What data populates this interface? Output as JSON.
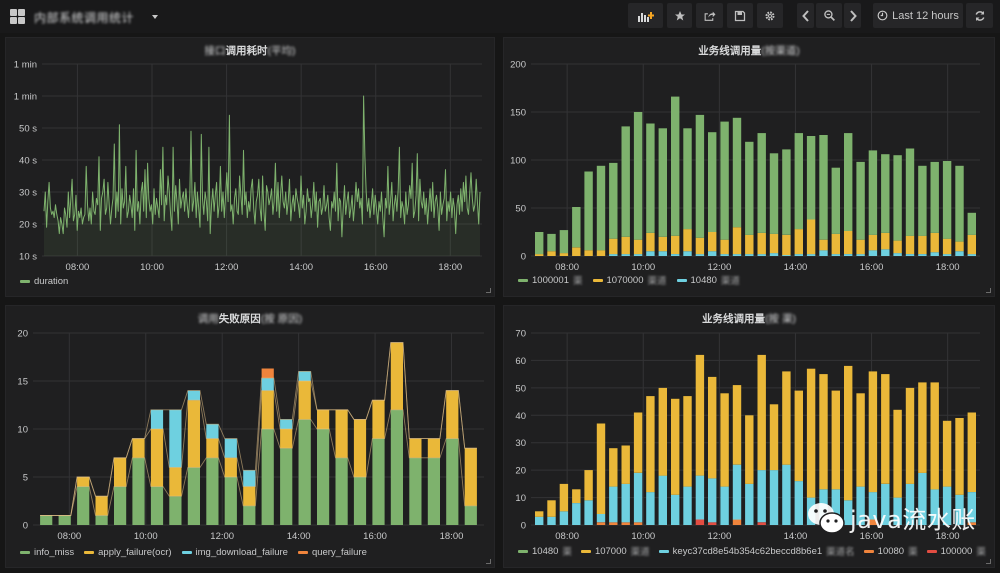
{
  "topbar": {
    "dashboard_title": "内部系统调用统计",
    "buttons": {
      "add_panel": "add-panel-icon",
      "star": "star-icon",
      "share": "share-icon",
      "save": "save-icon",
      "settings": "gear-icon",
      "back": "chevron-left-icon",
      "zoom_out": "zoom-out-icon",
      "forward": "chevron-right-icon",
      "refresh": "refresh-icon"
    },
    "time_range": "Last 12 hours"
  },
  "watermark": {
    "text": "java流水账"
  },
  "colors": {
    "green": "#7eb26d",
    "yellow": "#eab839",
    "blue": "#6ed0e0",
    "orange": "#ef843c",
    "red": "#e24d42",
    "grid": "#333335"
  },
  "panels": [
    {
      "title_prefix": "接口",
      "title_main": "调用耗时",
      "title_blurred": "(平均)",
      "legend": [
        {
          "label": "duration",
          "color": "#7eb26d"
        }
      ]
    },
    {
      "title_main": "业务线调用量",
      "title_blurred": "(按渠道)",
      "legend": [
        {
          "label": "1000001",
          "blurred": "渠",
          "color": "#7eb26d"
        },
        {
          "label": "1070000",
          "blurred": "渠道",
          "color": "#eab839"
        },
        {
          "label": "10480",
          "blurred": "渠道",
          "color": "#6ed0e0"
        }
      ]
    },
    {
      "title_prefix": "调用",
      "title_main": "失败原因",
      "title_blurred": "(按 原因)",
      "legend": [
        {
          "label": "info_miss",
          "color": "#7eb26d"
        },
        {
          "label": "apply_failure(ocr)",
          "color": "#eab839"
        },
        {
          "label": "img_download_failure",
          "color": "#6ed0e0"
        },
        {
          "label": "query_failure",
          "color": "#ef843c"
        }
      ]
    },
    {
      "title_main": "业务线调用量",
      "title_blurred": "(按 渠)",
      "legend": [
        {
          "label": "10480",
          "blurred": "渠",
          "color": "#7eb26d"
        },
        {
          "label": "107000",
          "blurred": "渠道",
          "color": "#eab839"
        },
        {
          "label": "keyc37cd8e54b354c62beccd8b6e1",
          "blurred": "渠道名",
          "color": "#6ed0e0"
        },
        {
          "label": "10080",
          "blurred": "渠",
          "color": "#ef843c"
        },
        {
          "label": "100000",
          "blurred": "渠",
          "color": "#e24d42"
        }
      ]
    }
  ],
  "chart_data": [
    {
      "type": "line",
      "title": "调用耗时",
      "x_ticks": [
        "08:00",
        "10:00",
        "12:00",
        "14:00",
        "16:00",
        "18:00"
      ],
      "y_ticks": [
        "1 min",
        "1 min",
        "50 s",
        "40 s",
        "30 s",
        "20 s",
        "10 s"
      ],
      "y_tick_values": [
        70,
        60,
        50,
        40,
        30,
        20,
        10
      ],
      "ylim": [
        10,
        70
      ],
      "x_range_hours": [
        7.05,
        18.85
      ],
      "series": [
        {
          "name": "duration",
          "fill": true,
          "values": [
            24,
            30,
            19,
            27,
            33,
            25,
            23,
            24,
            22,
            26,
            23,
            21,
            17,
            22,
            20,
            17,
            25,
            23,
            19,
            30,
            22,
            28,
            34,
            21,
            23,
            29,
            18,
            24,
            22,
            25,
            20,
            22,
            23,
            38,
            26,
            21,
            25,
            20,
            30,
            24,
            23,
            28,
            26,
            41,
            18,
            28,
            30,
            34,
            23,
            25,
            33,
            26,
            20,
            25,
            28,
            45,
            22,
            30,
            24,
            51,
            20,
            31,
            25,
            27,
            38,
            22,
            24,
            29,
            26,
            22,
            31,
            18,
            43,
            24,
            27,
            20,
            30,
            33,
            24,
            37,
            22,
            39,
            28,
            24,
            26,
            20,
            31,
            23,
            28,
            25,
            22,
            37,
            26,
            44,
            21,
            29,
            26,
            35,
            30,
            23,
            18,
            44,
            24,
            32,
            27,
            20,
            34,
            25,
            28,
            30,
            24,
            31,
            26,
            22,
            29,
            49,
            24,
            27,
            33,
            22,
            30,
            25,
            19,
            48,
            28,
            23,
            30,
            27,
            21,
            44,
            17,
            26,
            31,
            24,
            29,
            33,
            22,
            26,
            38,
            24,
            30,
            22,
            29,
            36,
            27,
            54,
            24,
            26,
            20,
            28,
            31,
            24,
            23,
            35,
            29,
            23,
            43,
            26,
            30,
            22,
            27,
            24,
            31,
            34,
            25,
            20,
            27,
            29,
            34,
            25,
            21,
            35,
            24,
            18,
            32,
            30,
            26,
            28,
            31,
            23,
            27,
            39,
            24,
            33,
            22,
            29,
            35,
            27,
            25,
            30,
            23,
            27,
            34,
            21,
            26,
            29,
            24,
            31,
            28,
            26,
            22,
            35,
            25,
            29,
            20,
            24,
            31,
            27,
            28,
            22,
            26,
            33,
            24,
            30,
            19,
            27,
            28,
            23,
            25,
            32,
            24,
            26,
            29,
            22,
            18,
            27,
            25,
            30,
            24,
            39,
            21,
            28,
            27,
            16,
            25,
            32,
            23,
            27,
            30,
            22,
            25,
            29,
            21,
            26,
            33,
            27,
            31,
            25,
            28,
            20,
            60,
            41,
            30,
            24,
            28,
            22,
            26,
            31,
            23,
            29,
            25,
            20,
            27,
            24,
            30,
            22,
            16,
            28,
            25,
            38,
            23,
            27,
            33,
            21,
            26,
            29,
            24,
            31,
            44,
            22,
            27,
            25,
            20,
            30,
            23,
            26,
            32,
            28,
            39,
            22,
            24,
            29,
            42,
            21,
            34,
            27,
            25,
            30,
            23,
            28,
            20,
            26,
            31,
            24,
            33,
            22,
            27,
            29,
            25,
            18,
            30,
            23,
            26,
            28,
            37,
            21,
            27,
            24,
            30,
            22,
            28,
            25,
            17,
            26,
            29,
            23,
            31,
            24,
            33,
            27,
            35,
            25,
            23,
            30,
            36,
            28,
            24,
            26,
            34,
            27,
            20,
            30
          ]
        }
      ]
    },
    {
      "type": "bar",
      "stacked": true,
      "title": "业务线调用量",
      "x_ticks": [
        "08:00",
        "10:00",
        "12:00",
        "14:00",
        "16:00",
        "18:00"
      ],
      "y_ticks": [
        0,
        50,
        100,
        150,
        200
      ],
      "ylim": [
        0,
        200
      ],
      "x_range_hours": [
        7.05,
        18.85
      ],
      "series": [
        {
          "name": "10480",
          "color": "#6ed0e0",
          "values": [
            0,
            0,
            0,
            0,
            0,
            0,
            2,
            2,
            2,
            5,
            5,
            2,
            5,
            2,
            5,
            2,
            2,
            2,
            2,
            3,
            1,
            2,
            2,
            6,
            2,
            2,
            2,
            6,
            7,
            3,
            2,
            2,
            4,
            2,
            5,
            2
          ]
        },
        {
          "name": "1070000",
          "color": "#eab839",
          "values": [
            2,
            5,
            3,
            9,
            6,
            6,
            16,
            18,
            15,
            19,
            15,
            19,
            23,
            17,
            20,
            15,
            28,
            20,
            22,
            20,
            21,
            26,
            36,
            11,
            21,
            24,
            15,
            16,
            17,
            13,
            19,
            19,
            20,
            16,
            10,
            20
          ]
        },
        {
          "name": "1000001",
          "color": "#7eb26d",
          "values": [
            23,
            18,
            24,
            42,
            82,
            88,
            79,
            115,
            133,
            114,
            113,
            145,
            105,
            128,
            104,
            123,
            114,
            97,
            104,
            84,
            89,
            100,
            87,
            109,
            69,
            102,
            81,
            88,
            82,
            89,
            91,
            73,
            74,
            81,
            79,
            23
          ]
        }
      ]
    },
    {
      "type": "bar",
      "stacked": true,
      "title": "失败原因",
      "x_ticks": [
        "08:00",
        "10:00",
        "12:00",
        "14:00",
        "16:00",
        "18:00"
      ],
      "y_ticks": [
        0,
        5,
        10,
        15,
        20
      ],
      "ylim": [
        0,
        20
      ],
      "x_range_hours": [
        7.05,
        18.85
      ],
      "series": [
        {
          "name": "info_miss",
          "color": "#7eb26d",
          "values": [
            1,
            1,
            4,
            1,
            4,
            7,
            4,
            3,
            6,
            7,
            5,
            2,
            10,
            8,
            11,
            10,
            7,
            5,
            9,
            12,
            7,
            7,
            9,
            2
          ]
        },
        {
          "name": "apply_failure(ocr)",
          "color": "#eab839",
          "values": [
            0,
            0,
            1,
            2,
            3,
            2,
            6,
            3,
            7,
            2,
            2,
            2,
            4,
            2,
            4,
            2,
            5,
            6,
            4,
            7,
            2,
            2,
            5,
            6
          ]
        },
        {
          "name": "img_download_failure",
          "color": "#6ed0e0",
          "values": [
            0,
            0,
            0,
            0,
            0,
            0,
            2,
            6,
            1,
            1.5,
            2,
            1.7,
            1.3,
            1,
            1,
            0,
            0,
            0,
            0,
            0,
            0,
            0,
            0,
            0
          ]
        },
        {
          "name": "query_failure",
          "color": "#ef843c",
          "values": [
            0,
            0,
            0,
            0,
            0,
            0,
            0,
            0,
            0,
            0,
            0,
            0,
            1,
            0,
            0,
            0,
            0,
            0,
            0,
            0,
            0,
            0,
            0,
            0
          ]
        }
      ]
    },
    {
      "type": "bar",
      "stacked": true,
      "title": "业务线调用量",
      "x_ticks": [
        "08:00",
        "10:00",
        "12:00",
        "14:00",
        "16:00",
        "18:00"
      ],
      "y_ticks": [
        0,
        10,
        20,
        30,
        40,
        50,
        60,
        70
      ],
      "ylim": [
        0,
        70
      ],
      "x_range_hours": [
        7.05,
        18.85
      ],
      "series": [
        {
          "name": "100000",
          "color": "#e24d42",
          "values": [
            0,
            0,
            0,
            0,
            0,
            0,
            0,
            0,
            0,
            0,
            0,
            0,
            0,
            2,
            1,
            0,
            0,
            0,
            1,
            0,
            0,
            0,
            0,
            0,
            0,
            0,
            0,
            0,
            0,
            0,
            0,
            0,
            0,
            0,
            0,
            0
          ]
        },
        {
          "name": "10080",
          "color": "#ef843c",
          "values": [
            0,
            0,
            0,
            0,
            0,
            1,
            1,
            1,
            1,
            0,
            0,
            0,
            0,
            0,
            0,
            0,
            2,
            0,
            0,
            0,
            0,
            0,
            0,
            0,
            0,
            0,
            0,
            2,
            0,
            0,
            0,
            0,
            0,
            0,
            0,
            1
          ]
        },
        {
          "name": "keyc37cd8e54b354c62beccd8b6e1",
          "color": "#6ed0e0",
          "values": [
            3,
            3,
            5,
            8,
            9,
            3,
            13,
            14,
            18,
            12,
            18,
            11,
            14,
            16,
            16,
            14,
            20,
            15,
            19,
            20,
            22,
            16,
            10,
            13,
            13,
            9,
            14,
            10,
            15,
            10,
            15,
            19,
            13,
            14,
            11,
            11
          ]
        },
        {
          "name": "107000",
          "color": "#eab839",
          "values": [
            2,
            6,
            10,
            5,
            11,
            33,
            14,
            14,
            22,
            35,
            32,
            35,
            33,
            44,
            37,
            34,
            29,
            25,
            42,
            24,
            34,
            33,
            47,
            42,
            36,
            49,
            34,
            44,
            40,
            32,
            35,
            33,
            39,
            24,
            28,
            29
          ]
        },
        {
          "name": "10480",
          "color": "#7eb26d",
          "values": [
            0,
            0,
            0,
            0,
            0,
            0,
            0,
            0,
            0,
            0,
            0,
            0,
            0,
            0,
            0,
            0,
            0,
            0,
            0,
            0,
            0,
            0,
            0,
            0,
            0,
            0,
            0,
            0,
            0,
            0,
            0,
            0,
            0,
            0,
            0,
            0
          ]
        }
      ]
    }
  ]
}
